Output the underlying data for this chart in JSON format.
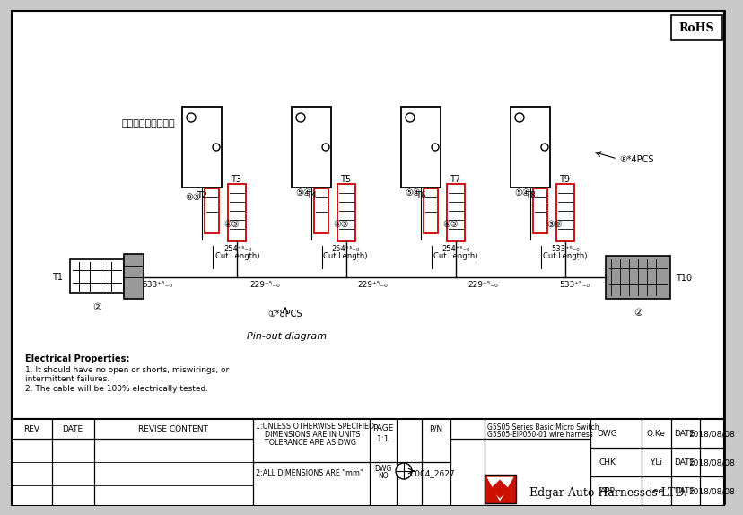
{
  "bg_color": "#c8c8c8",
  "white": "#ffffff",
  "black": "#000000",
  "red": "#cc0000",
  "gray": "#888888",
  "rohs_text": "RoHS",
  "chinese_label": "打完端子插在开关上",
  "pin_out_text": "Pin-out diagram",
  "elec_title": "Electrical Properties:",
  "elec_line1": "1. It should have no open or shorts, miswirings, or",
  "elec_line2": "intermittent failures.",
  "elec_line3": "2. The cable will be 100% electrically tested.",
  "note_4pcs": "⑧*4PCS",
  "note_8pcs": "①*8PCS",
  "dim_533L": "533⁺⁵₋₀",
  "dim_229a": "229⁺⁵₋₀",
  "dim_229b": "229⁺⁵₋₀",
  "dim_229c": "229⁺⁵₋₀",
  "dim_533R": "533⁺⁵₋₀",
  "dim_254a": "254⁺⁵₋₀",
  "dim_254b": "254⁺⁵₋₀",
  "dim_254c": "254⁺⁵₋₀",
  "cut_length": "Cut Length)",
  "tb_rev": "REV",
  "tb_date_hdr": "DATE",
  "tb_revise": "REVISE CONTENT",
  "tb_note1a": "1:UNLESS OTHERWISE SPECIFIED",
  "tb_note1b": "    DIMENSIONS ARE IN UNITS",
  "tb_note1c": "    TOLERANCE ARE AS DWG",
  "tb_note2": "2:ALL DIMENSIONS ARE \"mm\"",
  "tb_page_label": "PAGE",
  "tb_page_val": "1:1",
  "tb_pn_label": "P/N",
  "tb_desc1": "G5S05 Series Basic Micro Switch",
  "tb_desc2": "G5S05-EIP050-01 wire harness",
  "tb_dwg_label": "DWG",
  "tb_chk_label": "CHK",
  "tb_app_label": "APP",
  "tb_dwg_no_label": "DWG NO",
  "tb_dwg_val": "C004_2627",
  "tb_dwg_name": "Q.Ke",
  "tb_chk_name": "Y.Li",
  "tb_app_name": "Lee",
  "tb_date_val": "2018/08/08",
  "tb_company": "Edgar Auto Harnesses LTD."
}
